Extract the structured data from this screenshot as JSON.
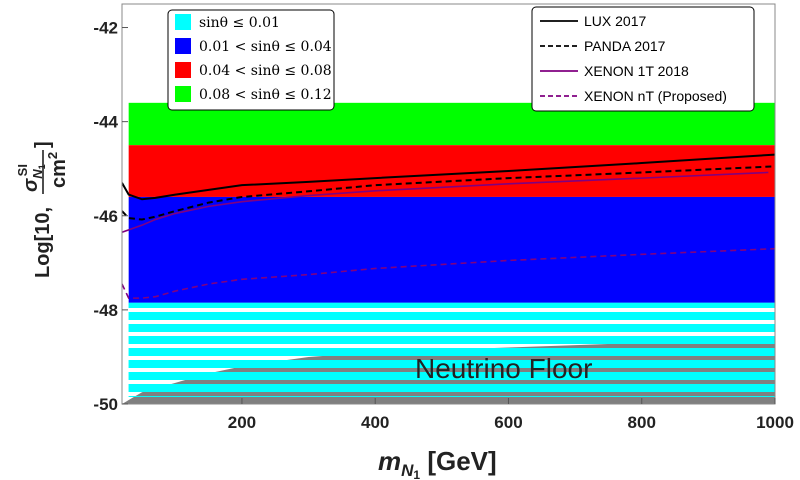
{
  "chart_data": {
    "type": "scatter",
    "xlabel_main": "m",
    "xlabel_sub": "N",
    "xlabel_subsub": "1",
    "xlabel_unit": " [GeV]",
    "ylabel_prefix": "Log[10, ",
    "ylabel_suffix": "]",
    "ylabel_numerator": "σ",
    "ylabel_numerator_sub": "N",
    "ylabel_numerator_subsub": "1",
    "ylabel_numerator_sup": "SI",
    "ylabel_denominator": "cm",
    "ylabel_denominator_sup": "2",
    "xlim": [
      20,
      1000
    ],
    "ylim": [
      -50,
      -41.5
    ],
    "x_ticks": [
      200,
      400,
      600,
      800,
      1000
    ],
    "x_tick_labels": [
      "200",
      "400",
      "600",
      "800",
      "1000"
    ],
    "y_ticks": [
      -50,
      -48,
      -46,
      -44,
      -42
    ],
    "y_tick_labels": [
      "-50",
      "-48",
      "-46",
      "-44",
      "-42"
    ],
    "bands": [
      {
        "name": "green",
        "label": "0.08 < sinθ ≤ 0.12",
        "color": "#00ff00",
        "y_range": [
          -44.5,
          -43.6
        ]
      },
      {
        "name": "red",
        "label": "0.04 < sinθ ≤ 0.08",
        "color": "#ff0000",
        "y_range": [
          -45.6,
          -44.5
        ]
      },
      {
        "name": "blue",
        "label": "0.01 < sinθ ≤ 0.04",
        "color": "#0000ff",
        "y_range": [
          -47.85,
          -45.6
        ]
      },
      {
        "name": "cyan",
        "label": "sinθ ≤ 0.01",
        "color": "#00ffff",
        "y_range": [
          -49.85,
          -47.85
        ]
      }
    ],
    "neutrino_floor": {
      "label": "Neutrino Floor",
      "color": "#808080",
      "x": [
        20,
        50,
        100,
        150,
        200,
        250,
        300,
        400,
        600,
        800,
        1000
      ],
      "y": [
        -50,
        -49.75,
        -49.55,
        -49.35,
        -49.2,
        -49.1,
        -49.0,
        -48.9,
        -48.8,
        -48.7,
        -48.65
      ]
    },
    "series": [
      {
        "name": "LUX 2017",
        "color": "#000000",
        "dash": "solid",
        "x": [
          20,
          30,
          50,
          70,
          100,
          150,
          200,
          300,
          400,
          600,
          800,
          1000
        ],
        "y": [
          -45.3,
          -45.55,
          -45.65,
          -45.62,
          -45.55,
          -45.45,
          -45.35,
          -45.28,
          -45.2,
          -45.05,
          -44.88,
          -44.7
        ]
      },
      {
        "name": "PANDA 2017",
        "color": "#000000",
        "dash": "dashed",
        "x": [
          20,
          30,
          50,
          70,
          100,
          150,
          200,
          300,
          400,
          600,
          800,
          1000
        ],
        "y": [
          -45.9,
          -46.05,
          -46.08,
          -46.02,
          -45.9,
          -45.72,
          -45.6,
          -45.48,
          -45.35,
          -45.2,
          -45.08,
          -44.95
        ]
      },
      {
        "name": "XENON 1T 2018",
        "color": "#800080",
        "dash": "solid",
        "x": [
          20,
          30,
          50,
          70,
          100,
          150,
          200,
          300,
          400,
          600,
          800,
          990
        ],
        "y": [
          -46.35,
          -46.3,
          -46.2,
          -46.08,
          -45.95,
          -45.8,
          -45.7,
          -45.57,
          -45.47,
          -45.32,
          -45.2,
          -45.08
        ]
      },
      {
        "name": "XENON nT (Proposed)",
        "color": "#800080",
        "dash": "dashed",
        "x": [
          20,
          30,
          50,
          70,
          100,
          150,
          200,
          300,
          400,
          600,
          800,
          1000
        ],
        "y": [
          -47.45,
          -47.75,
          -47.75,
          -47.72,
          -47.6,
          -47.45,
          -47.35,
          -47.25,
          -47.12,
          -46.95,
          -46.82,
          -46.7
        ]
      }
    ],
    "legend_left_position": "top-left",
    "legend_right_position": "top-right"
  }
}
